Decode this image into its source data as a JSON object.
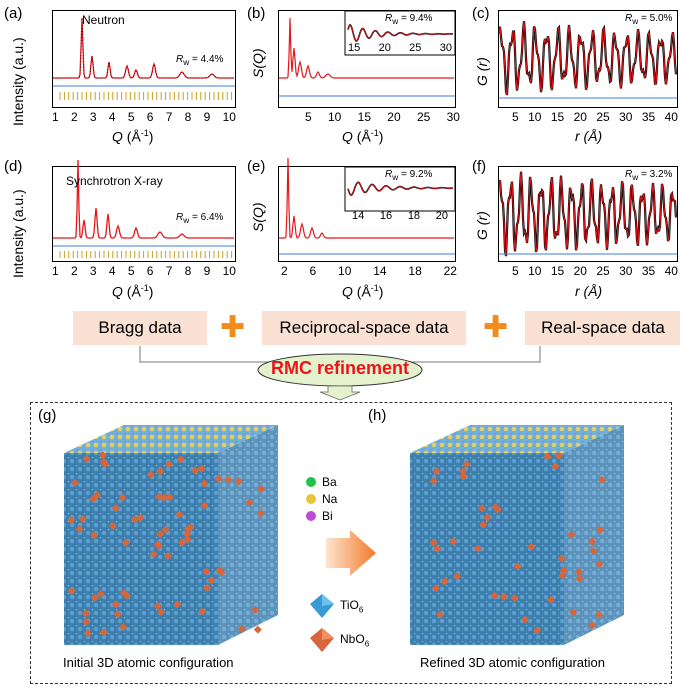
{
  "panels": {
    "a": {
      "letter": "(a)",
      "title": "Neutron",
      "ylabel": "Intensity (a.u.)",
      "xlabel_main": "Q",
      "xlabel_unit": " (Å",
      "xlabel_sup": "-1",
      "xlabel_end": ")",
      "rw": "R",
      "rw_sub": "w",
      "rw_val": " = 4.4%",
      "xticks": [
        "1",
        "2",
        "3",
        "4",
        "5",
        "6",
        "7",
        "8",
        "9",
        "10"
      ]
    },
    "b": {
      "letter": "(b)",
      "ylabel": "S(Q)",
      "xlabel_main": "Q",
      "xlabel_unit": " (Å",
      "xlabel_sup": "-1",
      "xlabel_end": ")",
      "rw": "R",
      "rw_sub": "w",
      "rw_val": " = 9.4%",
      "xticks": [
        "5",
        "10",
        "15",
        "20",
        "25",
        "30"
      ],
      "inset_xticks": [
        "15",
        "20",
        "25",
        "30"
      ]
    },
    "c": {
      "letter": "(c)",
      "ylabel": "G (r)",
      "xlabel": "r (Å)",
      "rw": "R",
      "rw_sub": "w",
      "rw_val": " = 5.0%",
      "xticks": [
        "5",
        "10",
        "15",
        "20",
        "25",
        "30",
        "35",
        "40"
      ]
    },
    "d": {
      "letter": "(d)",
      "title": "Synchrotron X-ray",
      "ylabel": "Intensity (a.u.)",
      "xlabel_main": "Q",
      "xlabel_unit": " (Å",
      "xlabel_sup": "-1",
      "xlabel_end": ")",
      "rw": "R",
      "rw_sub": "w",
      "rw_val": " = 6.4%",
      "xticks": [
        "1",
        "2",
        "3",
        "4",
        "5",
        "6",
        "7",
        "8",
        "9",
        "10"
      ]
    },
    "e": {
      "letter": "(e)",
      "ylabel": "S(Q)",
      "xlabel_main": "Q",
      "xlabel_unit": " (Å",
      "xlabel_sup": "-1",
      "xlabel_end": ")",
      "rw": "R",
      "rw_sub": "w",
      "rw_val": " = 9.2%",
      "xticks": [
        "2",
        "6",
        "10",
        "14",
        "18",
        "22"
      ],
      "inset_xticks": [
        "14",
        "16",
        "18",
        "20"
      ]
    },
    "f": {
      "letter": "(f)",
      "ylabel": "G (r)",
      "xlabel": "r (Å)",
      "rw": "R",
      "rw_sub": "w",
      "rw_val": " = 3.2%",
      "xticks": [
        "5",
        "10",
        "15",
        "20",
        "25",
        "30",
        "35",
        "40"
      ]
    }
  },
  "flow": {
    "bragg": "Bragg data",
    "reciprocal": "Reciprocal-space data",
    "real": "Real-space data",
    "rmc": "RMC refinement"
  },
  "bottom": {
    "g_letter": "(g)",
    "h_letter": "(h)",
    "initial": "Initial 3D atomic configuration",
    "refined": "Refined 3D atomic configuration",
    "legend_atoms": [
      {
        "label": "Ba",
        "color": "#22c24a"
      },
      {
        "label": "Na",
        "color": "#e8c43a"
      },
      {
        "label": "Bi",
        "color": "#c04ad6"
      }
    ],
    "legend_poly": [
      {
        "label": "TiO",
        "sub": "6",
        "color": "#3a9ad6"
      },
      {
        "label": "NbO",
        "sub": "6",
        "color": "#d8663a"
      }
    ]
  },
  "colors": {
    "fit": "#e8161b",
    "data": "#000000",
    "diff": "#3a7fe0",
    "bragg": "#c8a020",
    "accent": "#f28a1c"
  }
}
